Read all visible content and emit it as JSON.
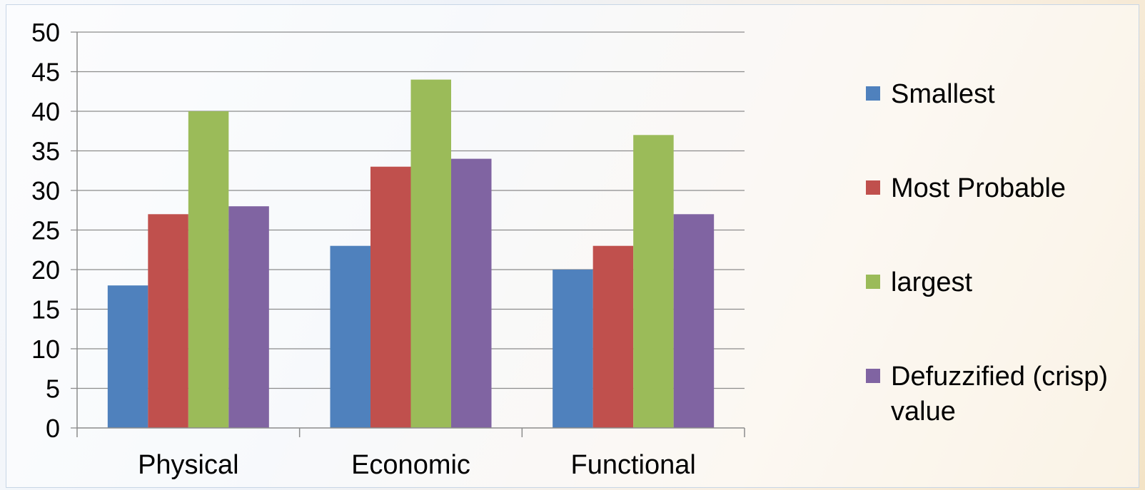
{
  "chart_data": {
    "type": "bar",
    "categories": [
      "Physical",
      "Economic",
      "Functional"
    ],
    "series": [
      {
        "name": "Smallest",
        "values": [
          18,
          23,
          20
        ],
        "color": "#4f81bd"
      },
      {
        "name": "Most Probable",
        "values": [
          27,
          33,
          23
        ],
        "color": "#c0504d"
      },
      {
        "name": "largest",
        "values": [
          40,
          44,
          37
        ],
        "color": "#9bbb59"
      },
      {
        "name": "Defuzzified (crisp) value",
        "values": [
          28,
          34,
          27
        ],
        "color": "#8064a2"
      }
    ],
    "ylim": [
      0,
      50
    ],
    "yticks": [
      "0",
      "5",
      "10",
      "15",
      "20",
      "25",
      "30",
      "35",
      "40",
      "45",
      "50"
    ],
    "grid": true,
    "legend_position": "right"
  }
}
